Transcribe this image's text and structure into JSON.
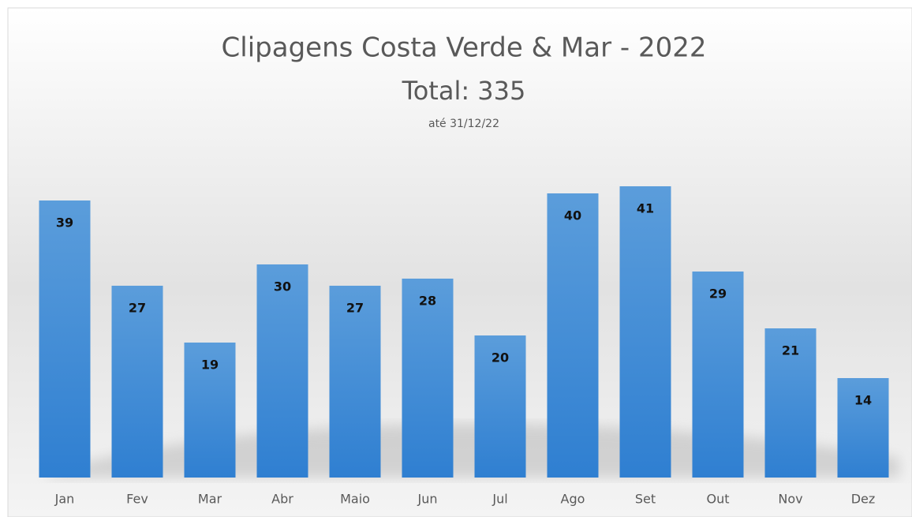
{
  "chart_data": {
    "type": "bar",
    "title": "Clipagens Costa Verde & Mar - 2022",
    "subtitle": "Total: 335",
    "note": "até 31/12/22",
    "categories": [
      "Jan",
      "Fev",
      "Mar",
      "Abr",
      "Maio",
      "Jun",
      "Jul",
      "Ago",
      "Set",
      "Out",
      "Nov",
      "Dez"
    ],
    "values": [
      39,
      27,
      19,
      30,
      27,
      28,
      20,
      40,
      41,
      29,
      21,
      14
    ],
    "color": "#4a90d9"
  }
}
